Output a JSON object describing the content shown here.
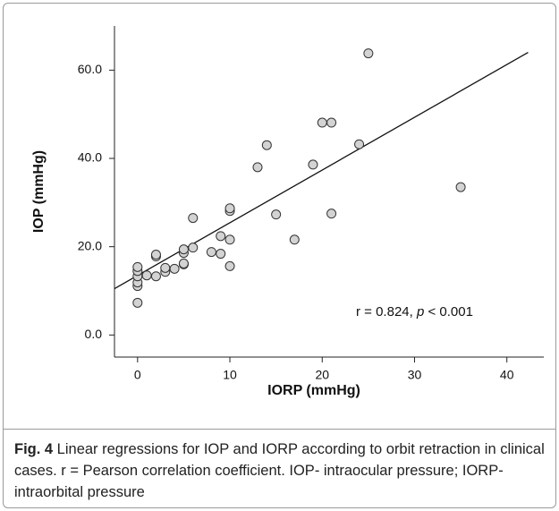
{
  "chart_data": {
    "type": "scatter",
    "x_label": "IORP (mmHg)",
    "y_label": "IOP (mmHg)",
    "xlim": [
      -2.5,
      44
    ],
    "ylim": [
      -5,
      70
    ],
    "xticks": [
      0,
      10,
      20,
      30,
      40
    ],
    "yticks": [
      {
        "value": 0,
        "label": "0.0"
      },
      {
        "value": 20,
        "label": "20.0"
      },
      {
        "value": 40,
        "label": "40.0"
      },
      {
        "value": 60,
        "label": "60.0"
      }
    ],
    "color": "#d3d3d3",
    "x": [
      0,
      0,
      0,
      0,
      0,
      0,
      1,
      2,
      2,
      2,
      3,
      3,
      4,
      5,
      5,
      5,
      5,
      6,
      6,
      8,
      9,
      9,
      10,
      10,
      10,
      10,
      13,
      14,
      15,
      17,
      19,
      20,
      21,
      21,
      24,
      25,
      35
    ],
    "y": [
      7.3,
      11.1,
      11.9,
      13.3,
      14.5,
      15.4,
      13.5,
      13.3,
      17.8,
      18.2,
      14.3,
      15.2,
      15,
      16,
      16.2,
      18.6,
      19.4,
      19.8,
      26.5,
      18.8,
      18.4,
      22.4,
      15.6,
      21.6,
      28.1,
      28.7,
      38,
      43,
      27.3,
      21.6,
      38.6,
      48.1,
      48.1,
      27.5,
      43.2,
      63.8,
      33.5
    ],
    "regression": {
      "x": [
        -2.5,
        42.3
      ],
      "y": [
        10.5,
        64
      ]
    },
    "annotation": [
      "r = 0.824, ",
      "p",
      " < 0.001"
    ]
  },
  "caption": {
    "label": "Fig. 4",
    "text": " Linear regressions for IOP and IORP according to orbit retraction in clinical cases. r = Pearson correlation coefficient. IOP- intraocular pressure; IORP- intraorbital pressure"
  }
}
